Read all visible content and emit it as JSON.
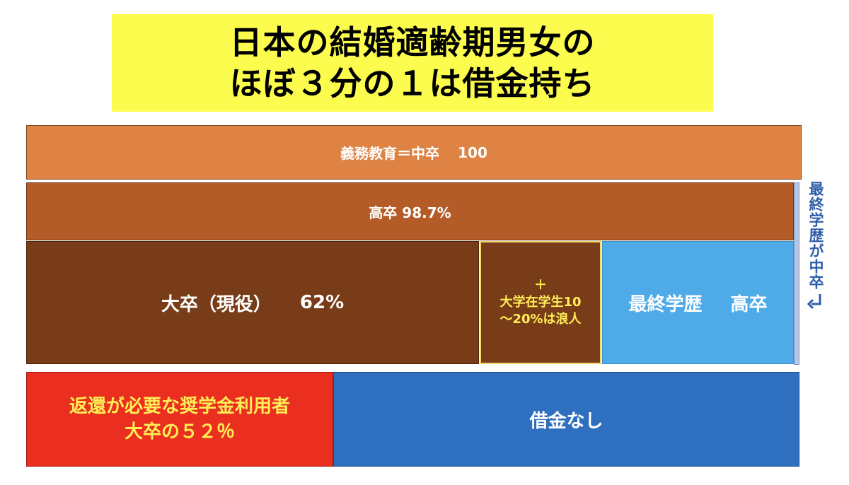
{
  "title": {
    "line1": "日本の結婚適齢期男女の",
    "line2": "ほぼ３分の１は借金持ち"
  },
  "blocks": {
    "compulsory": {
      "label": "義務教育＝中卒",
      "value": "100"
    },
    "highschool": {
      "label": "高卒 98.7%"
    },
    "university": {
      "label": "大卒（現役）",
      "value": "62%"
    },
    "plus": {
      "line1": "＋",
      "line2": "大学在学生10",
      "line3": "～20%は浪人"
    },
    "final_hs": {
      "label": "最終学歴",
      "value": "高卒"
    },
    "loan": {
      "line1": "返還が必要な奨学金利用者",
      "line2": "大卒の５２％"
    },
    "noloan": {
      "label": "借金なし"
    }
  },
  "side_note": {
    "label": "最終学歴が中卒",
    "icon": "return-arrow-icon"
  },
  "colors": {
    "title_bg": "#fcfc4e",
    "compulsory": "#de8343",
    "highschool": "#b45c27",
    "university": "#783c18",
    "final_hs": "#4fabe8",
    "loan": "#ea2e1f",
    "noloan": "#2f6fbf",
    "side_note": "#2f5da8"
  }
}
